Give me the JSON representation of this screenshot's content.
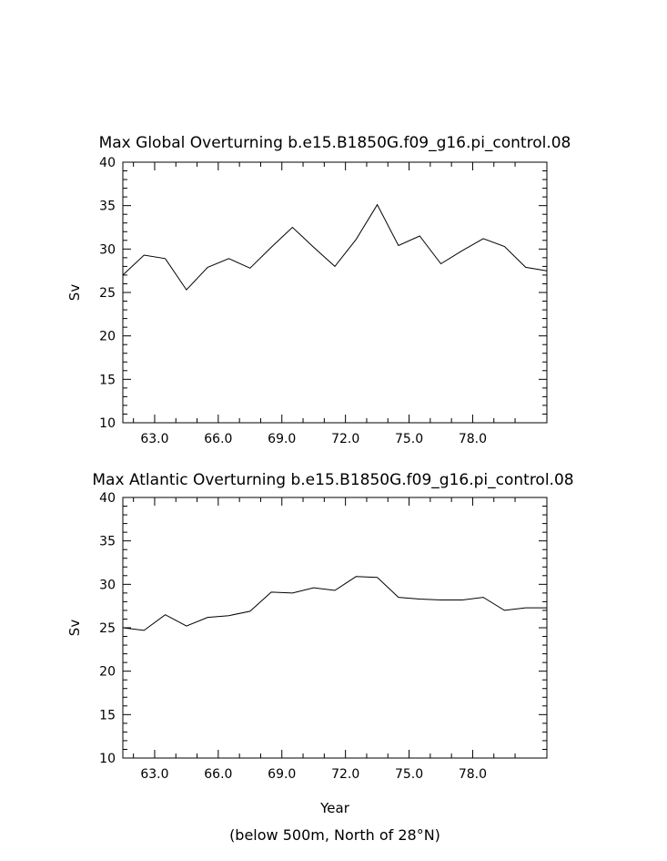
{
  "chart_data": [
    {
      "type": "line",
      "title": "Max Global Overturning b.e15.B1850G.f09_g16.pi_control.08",
      "xlabel": "",
      "ylabel": "Sv",
      "xlim": [
        61.5,
        81.5
      ],
      "ylim": [
        10,
        40
      ],
      "x_ticks": [
        63,
        66,
        69,
        72,
        75,
        78
      ],
      "x_tick_labels": [
        "63.0",
        "66.0",
        "69.0",
        "72.0",
        "75.0",
        "78.0"
      ],
      "y_ticks": [
        10,
        15,
        20,
        25,
        30,
        35,
        40
      ],
      "y_tick_labels": [
        "10",
        "15",
        "20",
        "25",
        "30",
        "35",
        "40"
      ],
      "grid": false,
      "series": [
        {
          "x": [
            61.5,
            62.5,
            63.5,
            64.5,
            65.5,
            66.5,
            67.5,
            68.5,
            69.5,
            70.5,
            71.5,
            72.5,
            73.5,
            74.5,
            75.5,
            76.5,
            77.5,
            78.5,
            79.5,
            80.5,
            81.5
          ],
          "values": [
            27.0,
            29.3,
            28.9,
            25.3,
            27.9,
            28.9,
            27.8,
            30.2,
            32.5,
            30.2,
            28.0,
            31.1,
            35.1,
            30.4,
            31.5,
            28.3,
            29.8,
            31.2,
            30.3,
            27.9,
            27.5
          ],
          "color": "#000000"
        }
      ]
    },
    {
      "type": "line",
      "title": "Max Atlantic Overturning b.e15.B1850G.f09_g16.pi_control.08",
      "xlabel": "Year",
      "ylabel": "Sv",
      "xlim": [
        61.5,
        81.5
      ],
      "ylim": [
        10,
        40
      ],
      "x_ticks": [
        63,
        66,
        69,
        72,
        75,
        78
      ],
      "x_tick_labels": [
        "63.0",
        "66.0",
        "69.0",
        "72.0",
        "75.0",
        "78.0"
      ],
      "y_ticks": [
        10,
        15,
        20,
        25,
        30,
        35,
        40
      ],
      "y_tick_labels": [
        "10",
        "15",
        "20",
        "25",
        "30",
        "35",
        "40"
      ],
      "grid": false,
      "series": [
        {
          "x": [
            61.5,
            62.5,
            63.5,
            64.5,
            65.5,
            66.5,
            67.5,
            68.5,
            69.5,
            70.5,
            71.5,
            72.5,
            73.5,
            74.5,
            75.5,
            76.5,
            77.5,
            78.5,
            79.5,
            80.5,
            81.5
          ],
          "values": [
            25.0,
            24.7,
            26.5,
            25.2,
            26.2,
            26.4,
            26.9,
            29.1,
            29.0,
            29.6,
            29.3,
            30.9,
            30.8,
            28.5,
            28.3,
            28.2,
            28.2,
            28.5,
            27.0,
            27.3,
            27.3
          ],
          "color": "#000000"
        }
      ]
    }
  ],
  "footnote": "(below 500m, North of 28°N)"
}
